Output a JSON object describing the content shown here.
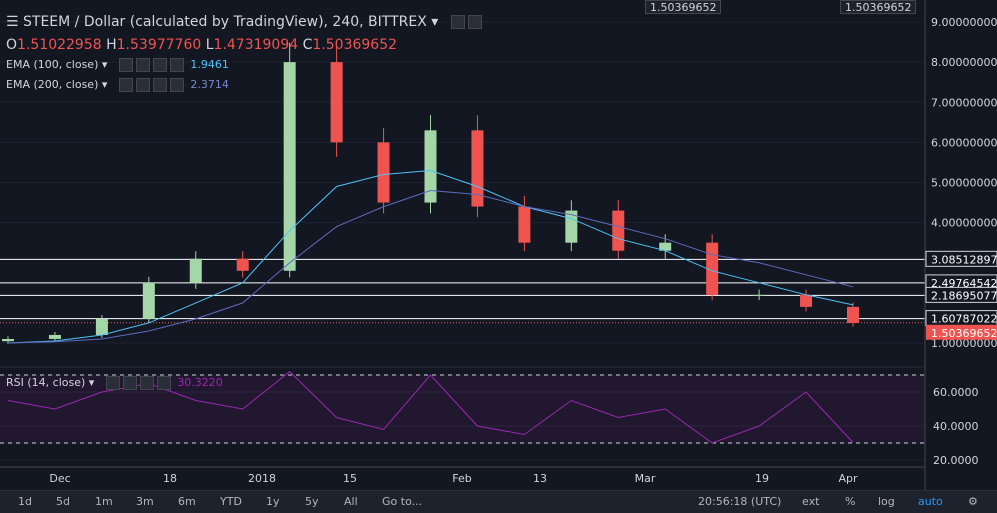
{
  "header": {
    "title": "STEEM / Dollar (calculated by TradingView), 240, BITTREX",
    "ohlc": {
      "o_label": "O",
      "o": "1.51022958",
      "h_label": "H",
      "h": "1.53977760",
      "l_label": "L",
      "l": "1.47319094",
      "c_label": "C",
      "c": "1.50369652"
    },
    "ema100_label": "EMA (100, close)",
    "ema100_value": "1.9461",
    "ema200_label": "EMA (200, close)",
    "ema200_value": "2.3714",
    "top_box_left": "1.50369652",
    "top_box_right": "1.50369652"
  },
  "rsi": {
    "label": "RSI (14, close)",
    "value": "30.3220",
    "ticks": [
      "60.0000",
      "40.0000",
      "20.0000"
    ]
  },
  "price_axis": {
    "ticks": [
      "9.00000000",
      "8.00000000",
      "7.00000000",
      "6.00000000",
      "5.00000000",
      "4.00000000",
      "1.00000000"
    ],
    "level_labels": [
      "3.08512897",
      "2.49764542",
      "2.18695077",
      "1.60787022"
    ],
    "current_label": "1.50369652"
  },
  "time_axis": {
    "labels": [
      "Dec",
      "18",
      "2018",
      "15",
      "Feb",
      "13",
      "Mar",
      "19",
      "Apr"
    ]
  },
  "toolbar": {
    "ranges": [
      "1d",
      "5d",
      "1m",
      "3m",
      "6m",
      "YTD",
      "1y",
      "5y",
      "All"
    ],
    "goto": "Go to...",
    "time": "20:56:18 (UTC)",
    "ext": "ext",
    "pct": "%",
    "log": "log",
    "auto": "auto"
  },
  "colors": {
    "background": "#131722",
    "up": "#a5d6a7",
    "down": "#ef5350",
    "ema100": "#4fc3f7",
    "ema200": "#5c6bc0",
    "rsi": "#9c27b0",
    "current": "#ef5350"
  },
  "chart_data": [
    {
      "type": "candlestick",
      "title": "STEEM / Dollar (calculated by TradingView), 240, BITTREX",
      "x": [
        "Nov-24",
        "Dec-01",
        "Dec-08",
        "Dec-15",
        "Dec-22",
        "Dec-29",
        "Jan-05",
        "Jan-12",
        "Jan-19",
        "Jan-26",
        "Feb-02",
        "Feb-09",
        "Feb-16",
        "Feb-23",
        "Mar-02",
        "Mar-09",
        "Mar-16",
        "Mar-23",
        "Mar-30"
      ],
      "close": [
        1.1,
        1.2,
        1.6,
        2.5,
        3.1,
        2.8,
        8.0,
        6.0,
        4.5,
        6.3,
        4.4,
        3.5,
        4.3,
        3.3,
        3.5,
        2.2,
        2.2,
        1.9,
        1.5
      ],
      "ema100": [
        1.0,
        1.05,
        1.2,
        1.5,
        2.0,
        2.5,
        3.8,
        4.9,
        5.2,
        5.3,
        4.9,
        4.4,
        4.1,
        3.6,
        3.3,
        2.8,
        2.5,
        2.2,
        1.95
      ],
      "ema200": [
        1.0,
        1.03,
        1.1,
        1.3,
        1.6,
        2.0,
        3.0,
        3.9,
        4.4,
        4.8,
        4.7,
        4.4,
        4.2,
        3.9,
        3.6,
        3.2,
        3.0,
        2.7,
        2.4
      ],
      "ylim": [
        0.8,
        9.2
      ],
      "horizontal_levels": [
        3.08512897,
        2.49764542,
        2.18695077,
        1.60787022
      ],
      "last_price": 1.50369652,
      "y_ticks": [
        9,
        8,
        7,
        6,
        5,
        4,
        1
      ]
    },
    {
      "type": "line",
      "title": "RSI (14, close)",
      "x": [
        "Nov-24",
        "Dec-01",
        "Dec-08",
        "Dec-15",
        "Dec-22",
        "Dec-29",
        "Jan-05",
        "Jan-12",
        "Jan-19",
        "Jan-26",
        "Feb-02",
        "Feb-09",
        "Feb-16",
        "Feb-23",
        "Mar-02",
        "Mar-09",
        "Mar-16",
        "Mar-23",
        "Mar-30"
      ],
      "values": [
        55,
        50,
        60,
        65,
        55,
        50,
        72,
        45,
        38,
        70,
        40,
        35,
        55,
        45,
        50,
        30,
        40,
        60,
        30.322
      ],
      "ylim": [
        15,
        75
      ],
      "bands": [
        70,
        30
      ]
    }
  ]
}
